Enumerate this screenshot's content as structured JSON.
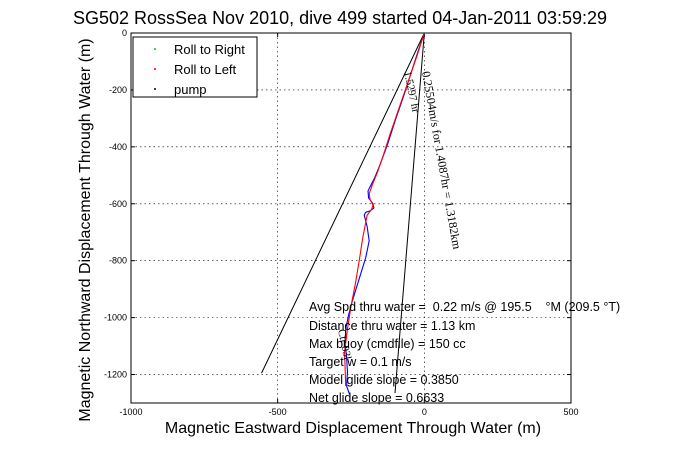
{
  "chart_data": {
    "type": "line",
    "title": "SG502 RossSea Nov 2010, dive 499 started 04-Jan-2011 03:59:29",
    "xlabel": "Magnetic Eastward Displacement Through Water (m)",
    "ylabel": "Magnetic Northward Displacement Through Water (m)",
    "xlim": [
      -1000,
      500
    ],
    "ylim": [
      -1300,
      0
    ],
    "xticks": [
      -1000,
      -500,
      0,
      500
    ],
    "yticks": [
      -1200,
      -1000,
      -800,
      -600,
      -400,
      -200,
      0
    ],
    "grid": true,
    "legend_position": "top-left",
    "legend": [
      {
        "label": "Roll to Right",
        "color": "#00cc00",
        "marker": "dot"
      },
      {
        "label": "Roll to Left",
        "color": "#ff0000",
        "marker": "dot"
      },
      {
        "label": "pump",
        "color": "#000000",
        "marker": "dot"
      }
    ],
    "series": [
      {
        "color": "#0000ff",
        "x": [
          0,
          -20,
          -45,
          -70,
          -100,
          -125,
          -150,
          -170,
          -185,
          -192,
          -190,
          -175,
          -172,
          -185,
          -200,
          -205,
          -195,
          -188,
          -200,
          -215,
          -230,
          -245,
          -258,
          -268,
          -270,
          -265,
          -262,
          -265,
          -255
        ],
        "y": [
          0,
          -60,
          -140,
          -220,
          -310,
          -390,
          -460,
          -510,
          -540,
          -555,
          -580,
          -600,
          -615,
          -625,
          -630,
          -640,
          -680,
          -730,
          -790,
          -840,
          -890,
          -940,
          -990,
          -1040,
          -1090,
          -1140,
          -1190,
          -1240,
          -1270
        ]
      },
      {
        "color": "#ff0000",
        "x": [
          0,
          -25,
          -55,
          -85,
          -115,
          -140,
          -160,
          -178,
          -188,
          -185,
          -175,
          -180,
          -195,
          -210,
          -222,
          -235,
          -250,
          -262,
          -272,
          -270,
          -268
        ],
        "y": [
          0,
          -80,
          -170,
          -260,
          -350,
          -430,
          -490,
          -535,
          -565,
          -585,
          -605,
          -620,
          -640,
          -720,
          -800,
          -880,
          -960,
          -1040,
          -1120,
          -1180,
          -1240
        ]
      }
    ],
    "reference_lines": [
      {
        "x": [
          0,
          -555
        ],
        "y": [
          0,
          -1195
        ]
      },
      {
        "x": [
          0,
          -100
        ],
        "y": [
          0,
          -1265
        ]
      }
    ],
    "annotations": [
      "Avg Spd thru water =  0.22 m/s @ 195.5    °M (209.5 °T)",
      "Distance thru water =  1.13 km",
      "Max buoy (cmdfile) = 150 cc",
      "Target w = 0.1 m/s",
      "Model glide slope = 0.3850",
      "Net glide slope = 0.6633"
    ],
    "diagonal_labels": [
      "0.25504m/s for 1.4087hr = 1.3182km",
      "1.5297 hr",
      "Ctr 03l"
    ]
  }
}
